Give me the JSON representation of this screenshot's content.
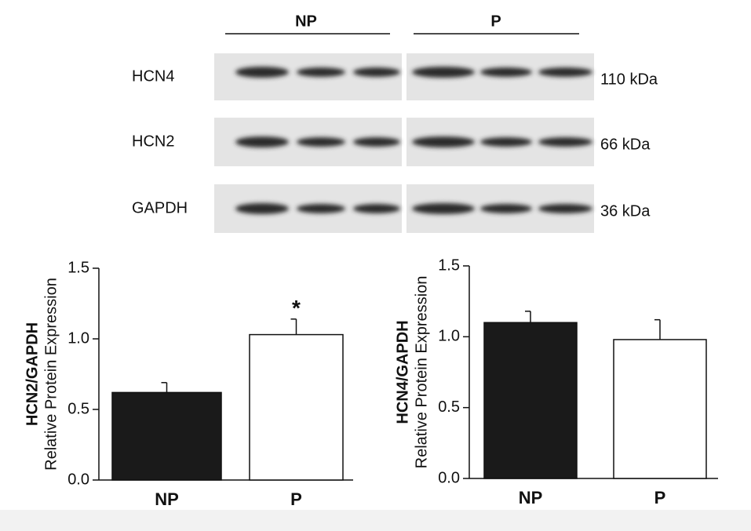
{
  "blot": {
    "groups": [
      "NP",
      "P"
    ],
    "rows": [
      {
        "label": "HCN4",
        "size": "110 kDa"
      },
      {
        "label": "HCN2",
        "size": "66 kDa"
      },
      {
        "label": "GAPDH",
        "size": "36 kDa"
      }
    ]
  },
  "chart_data": [
    {
      "type": "bar",
      "y_label": "HCN2/GAPDH",
      "y_sublabel": "Relative Protein Expression",
      "categories": [
        "NP",
        "P"
      ],
      "values": [
        0.62,
        1.03
      ],
      "errors": [
        0.07,
        0.11
      ],
      "colors": [
        "#1a1a1a",
        "#ffffff"
      ],
      "annotation": "*",
      "ylim": [
        0,
        1.5
      ],
      "yticks": [
        {
          "value": 0,
          "label": "0.0"
        },
        0.5,
        {
          "value": 1,
          "label": "1.0"
        },
        1.5
      ]
    },
    {
      "type": "bar",
      "y_label": "HCN4/GAPDH",
      "y_sublabel": "Relative Protein Expression",
      "categories": [
        "NP",
        "P"
      ],
      "values": [
        1.1,
        0.98
      ],
      "errors": [
        0.08,
        0.14
      ],
      "colors": [
        "#1a1a1a",
        "#ffffff"
      ],
      "ylim": [
        0,
        1.5
      ],
      "yticks": [
        {
          "value": 0,
          "label": "0.0"
        },
        0.5,
        {
          "value": 1,
          "label": "1.0"
        },
        1.5
      ]
    }
  ]
}
